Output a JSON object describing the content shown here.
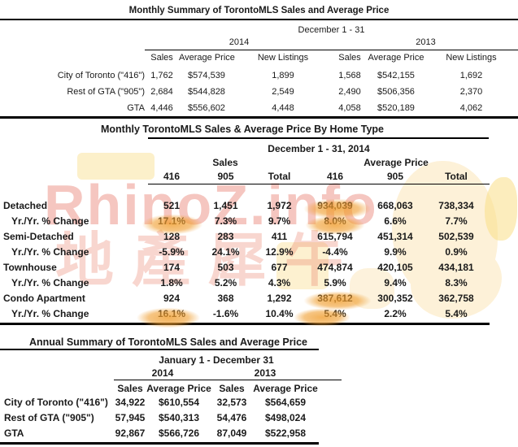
{
  "watermark": {
    "brand": "RhinoZ.info",
    "brand_cjk": "地產犀牛",
    "pink": "#f0bcb1",
    "cream": "#fdf1d8",
    "highlight": "#f09e2f"
  },
  "monthly_summary": {
    "title": "Monthly Summary of TorontoMLS Sales and Average Price",
    "period": "December 1 - 31",
    "years": [
      "2014",
      "2013"
    ],
    "columns": [
      "Sales",
      "Average Price",
      "New Listings",
      "Sales",
      "Average Price",
      "New Listings"
    ],
    "rows": [
      {
        "label": "City of Toronto (\"416\")",
        "values": [
          "1,762",
          "$574,539",
          "1,899",
          "1,568",
          "$542,155",
          "1,692"
        ]
      },
      {
        "label": "Rest of GTA (\"905\")",
        "values": [
          "2,684",
          "$544,828",
          "2,549",
          "2,490",
          "$506,356",
          "2,370"
        ]
      },
      {
        "label": "GTA",
        "values": [
          "4,446",
          "$556,602",
          "4,448",
          "4,058",
          "$520,189",
          "4,062"
        ]
      }
    ]
  },
  "by_home_type": {
    "title": "Monthly TorontoMLS Sales & Average Price By Home Type",
    "period": "December 1 - 31, 2014",
    "groups": [
      "Sales",
      "Average Price"
    ],
    "columns": [
      "416",
      "905",
      "Total",
      "416",
      "905",
      "Total"
    ],
    "rows": [
      {
        "label": "Detached",
        "indent": false,
        "values": [
          "521",
          "1,451",
          "1,972",
          "934,039",
          "668,063",
          "738,334"
        ]
      },
      {
        "label": "Yr./Yr. % Change",
        "indent": true,
        "values": [
          "17.1%",
          "7.3%",
          "9.7%",
          "8.0%",
          "6.6%",
          "7.7%"
        ]
      },
      {
        "label": "Semi-Detached",
        "indent": false,
        "values": [
          "128",
          "283",
          "411",
          "615,794",
          "451,314",
          "502,539"
        ]
      },
      {
        "label": "Yr./Yr. % Change",
        "indent": true,
        "values": [
          "-5.9%",
          "24.1%",
          "12.9%",
          "-4.4%",
          "9.9%",
          "0.9%"
        ]
      },
      {
        "label": "Townhouse",
        "indent": false,
        "values": [
          "174",
          "503",
          "677",
          "474,874",
          "420,105",
          "434,181"
        ]
      },
      {
        "label": "Yr./Yr. % Change",
        "indent": true,
        "values": [
          "1.8%",
          "5.2%",
          "4.3%",
          "5.9%",
          "9.4%",
          "8.3%"
        ]
      },
      {
        "label": "Condo Apartment",
        "indent": false,
        "values": [
          "924",
          "368",
          "1,292",
          "387,612",
          "300,352",
          "362,758"
        ]
      },
      {
        "label": "Yr./Yr. % Change",
        "indent": true,
        "values": [
          "16.1%",
          "-1.6%",
          "10.4%",
          "5.4%",
          "2.2%",
          "5.4%"
        ]
      }
    ]
  },
  "annual_summary": {
    "title": "Annual Summary of TorontoMLS Sales and Average Price",
    "period": "January 1 - December 31",
    "years": [
      "2014",
      "2013"
    ],
    "columns": [
      "Sales",
      "Average Price",
      "Sales",
      "Average Price"
    ],
    "rows": [
      {
        "label": "City of Toronto (\"416\")",
        "values": [
          "34,922",
          "$610,554",
          "32,573",
          "$564,659"
        ]
      },
      {
        "label": "Rest of GTA (\"905\")",
        "values": [
          "57,945",
          "$540,313",
          "54,476",
          "$498,024"
        ]
      },
      {
        "label": "GTA",
        "values": [
          "92,867",
          "$566,726",
          "87,049",
          "$522,958"
        ]
      }
    ]
  }
}
